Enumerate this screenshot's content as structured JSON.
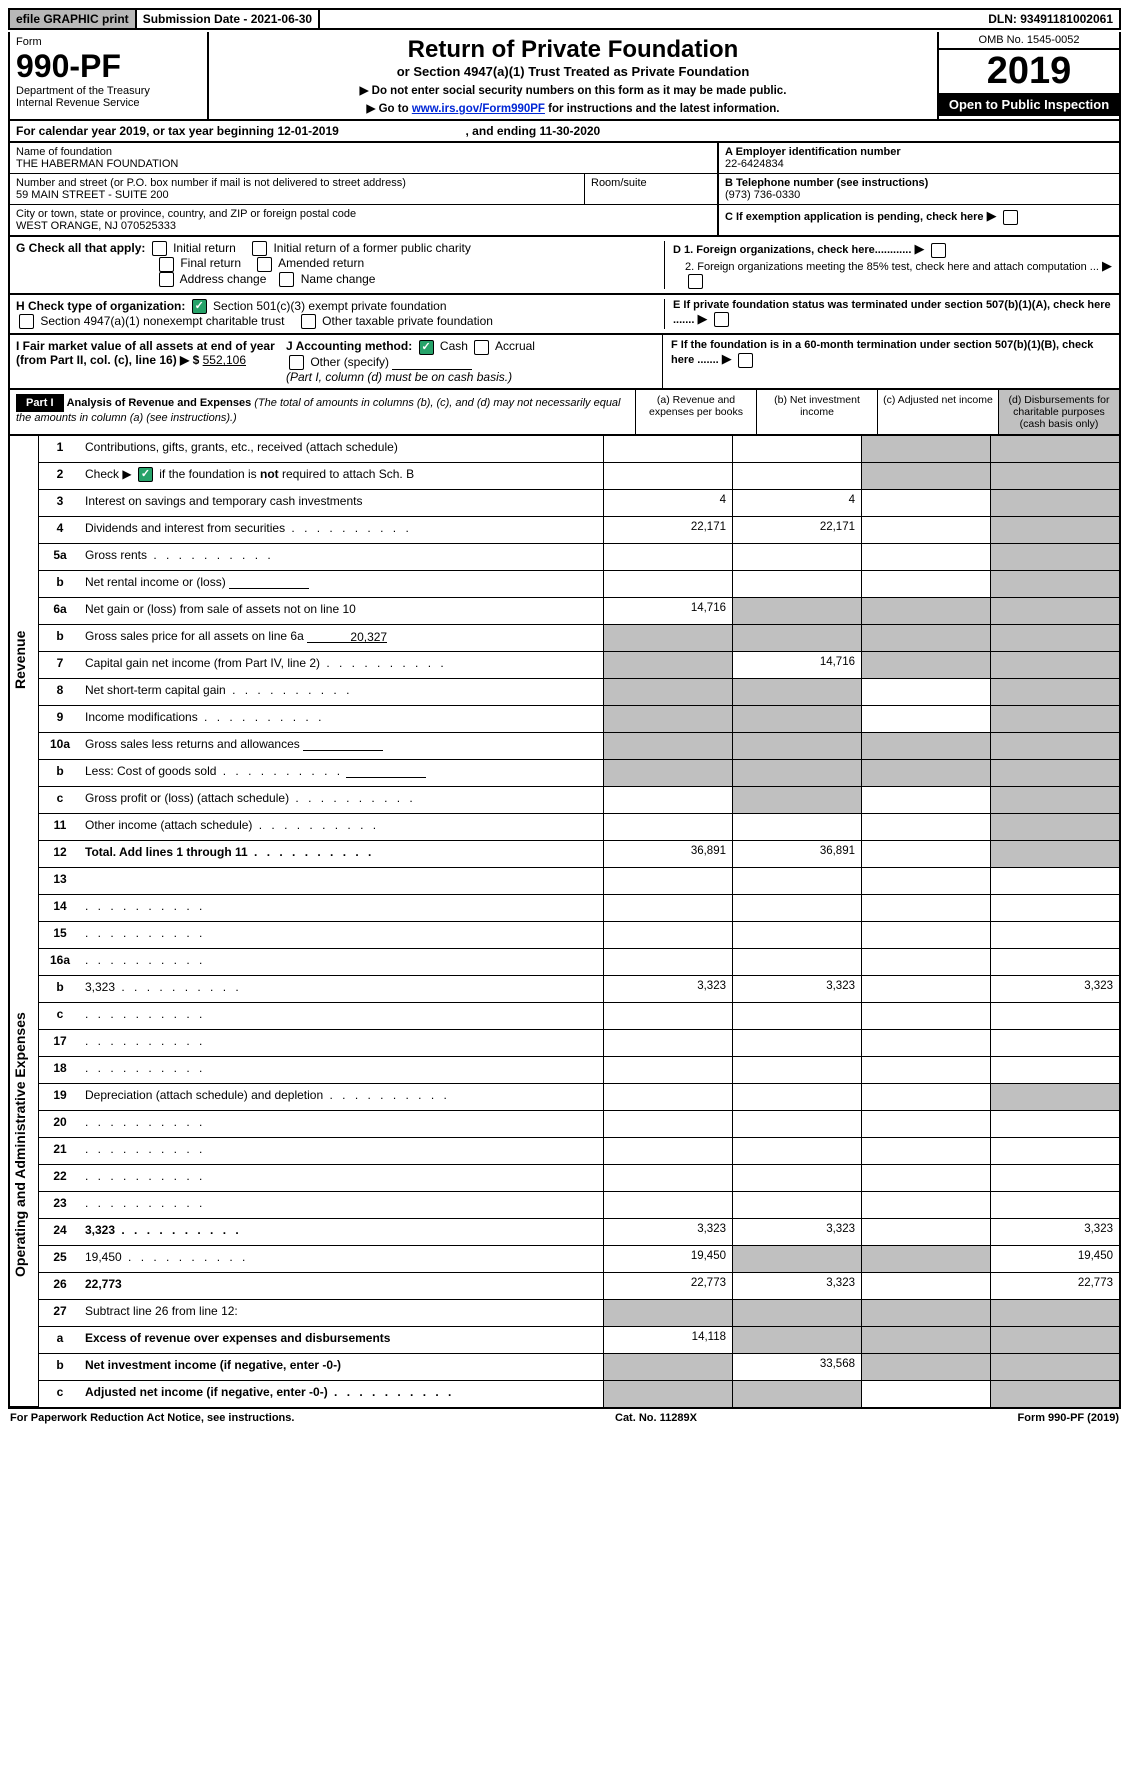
{
  "topbar": {
    "efile": "efile GRAPHIC print",
    "sub_label": "Submission Date - 2021-06-30",
    "dln": "DLN: 93491181002061"
  },
  "header": {
    "form_word": "Form",
    "form_num": "990-PF",
    "dept": "Department of the Treasury",
    "irs": "Internal Revenue Service",
    "title": "Return of Private Foundation",
    "sub": "or Section 4947(a)(1) Trust Treated as Private Foundation",
    "instr1": "▶ Do not enter social security numbers on this form as it may be made public.",
    "instr2_pre": "▶ Go to ",
    "instr2_link": "www.irs.gov/Form990PF",
    "instr2_post": " for instructions and the latest information.",
    "omb": "OMB No. 1545-0052",
    "year": "2019",
    "open": "Open to Public Inspection"
  },
  "cal_year": {
    "text_a": "For calendar year 2019, or tax year beginning 12-01-2019",
    "text_b": ", and ending 11-30-2020"
  },
  "info": {
    "name_label": "Name of foundation",
    "name": "THE HABERMAN FOUNDATION",
    "addr_label": "Number and street (or P.O. box number if mail is not delivered to street address)",
    "addr": "59 MAIN STREET - SUITE 200",
    "room_label": "Room/suite",
    "city_label": "City or town, state or province, country, and ZIP or foreign postal code",
    "city": "WEST ORANGE, NJ  070525333",
    "a_label": "A Employer identification number",
    "a_val": "22-6424834",
    "b_label": "B Telephone number (see instructions)",
    "b_val": "(973) 736-0330",
    "c_label": "C If exemption application is pending, check here"
  },
  "gsect": {
    "g": "G Check all that apply:",
    "initial": "Initial return",
    "initial_former": "Initial return of a former public charity",
    "final": "Final return",
    "amended": "Amended return",
    "addr_change": "Address change",
    "name_change": "Name change",
    "d1": "D 1. Foreign organizations, check here............",
    "d2": "2. Foreign organizations meeting the 85% test, check here and attach computation ...",
    "e": "E  If private foundation status was terminated under section 507(b)(1)(A), check here .......",
    "h": "H Check type of organization:",
    "h1": "Section 501(c)(3) exempt private foundation",
    "h2": "Section 4947(a)(1) nonexempt charitable trust",
    "h3": "Other taxable private foundation",
    "i": "I Fair market value of all assets at end of year (from Part II, col. (c), line 16) ▶ $",
    "i_val": "552,106",
    "j": "J Accounting method:",
    "j_cash": "Cash",
    "j_accr": "Accrual",
    "j_other": "Other (specify)",
    "j_note": "(Part I, column (d) must be on cash basis.)",
    "f": "F  If the foundation is in a 60-month termination under section 507(b)(1)(B), check here ......."
  },
  "part1": {
    "label": "Part I",
    "title": "Analysis of Revenue and Expenses",
    "title_note": " (The total of amounts in columns (b), (c), and (d) may not necessarily equal the amounts in column (a) (see instructions).)",
    "col_a": "(a)    Revenue and expenses per books",
    "col_b": "(b)   Net investment income",
    "col_c": "(c)   Adjusted net income",
    "col_d": "(d)   Disbursements for charitable purposes (cash basis only)"
  },
  "vtabs": {
    "rev": "Revenue",
    "exp": "Operating and Administrative Expenses"
  },
  "rows": [
    {
      "n": "1",
      "d": "Contributions, gifts, grants, etc., received (attach schedule)",
      "a": "",
      "b": "",
      "cSh": true,
      "dSh": true
    },
    {
      "n": "2",
      "d": "Check ▶ ☑ if the foundation is not required to attach Sch. B",
      "a": "",
      "b": "",
      "cSh": true,
      "dSh": true,
      "bold_word": "not"
    },
    {
      "n": "3",
      "d": "Interest on savings and temporary cash investments",
      "a": "4",
      "b": "4",
      "c": "",
      "dSh": true
    },
    {
      "n": "4",
      "d": "Dividends and interest from securities",
      "a": "22,171",
      "b": "22,171",
      "c": "",
      "dSh": true,
      "dots": true
    },
    {
      "n": "5a",
      "d": "Gross rents",
      "a": "",
      "b": "",
      "c": "",
      "dSh": true,
      "dots": true
    },
    {
      "n": "b",
      "d": "Net rental income or (loss)",
      "a": "",
      "b": "",
      "c": "",
      "dSh": true,
      "blank": true
    },
    {
      "n": "6a",
      "d": "Net gain or (loss) from sale of assets not on line 10",
      "a": "14,716",
      "bSh": true,
      "cSh": true,
      "dSh": true
    },
    {
      "n": "b",
      "d": "Gross sales price for all assets on line 6a",
      "aVal": "20,327",
      "aSh": true,
      "bSh": true,
      "cSh": true,
      "dSh": true,
      "inline_blank": true
    },
    {
      "n": "7",
      "d": "Capital gain net income (from Part IV, line 2)",
      "aSh": true,
      "b": "14,716",
      "cSh": true,
      "dSh": true,
      "dots": true
    },
    {
      "n": "8",
      "d": "Net short-term capital gain",
      "aSh": true,
      "bSh": true,
      "c": "",
      "dSh": true,
      "dots": true
    },
    {
      "n": "9",
      "d": "Income modifications",
      "aSh": true,
      "bSh": true,
      "c": "",
      "dSh": true,
      "dots": true
    },
    {
      "n": "10a",
      "d": "Gross sales less returns and allowances",
      "aSh": true,
      "bSh": true,
      "cSh": true,
      "dSh": true,
      "blank": true
    },
    {
      "n": "b",
      "d": "Less: Cost of goods sold",
      "aSh": true,
      "bSh": true,
      "cSh": true,
      "dSh": true,
      "blank": true,
      "dots": true
    },
    {
      "n": "c",
      "d": "Gross profit or (loss) (attach schedule)",
      "a": "",
      "bSh": true,
      "c": "",
      "dSh": true,
      "dots": true
    },
    {
      "n": "11",
      "d": "Other income (attach schedule)",
      "a": "",
      "b": "",
      "c": "",
      "dSh": true,
      "dots": true
    },
    {
      "n": "12",
      "d": "Total. Add lines 1 through 11",
      "a": "36,891",
      "b": "36,891",
      "c": "",
      "dSh": true,
      "bold": true,
      "dots": true
    },
    {
      "n": "13",
      "d": "",
      "a": "",
      "b": "",
      "c": ""
    },
    {
      "n": "14",
      "d": "",
      "a": "",
      "b": "",
      "c": "",
      "dots": true
    },
    {
      "n": "15",
      "d": "",
      "a": "",
      "b": "",
      "c": "",
      "dots": true
    },
    {
      "n": "16a",
      "d": "",
      "a": "",
      "b": "",
      "c": "",
      "dots": true
    },
    {
      "n": "b",
      "d": "3,323",
      "a": "3,323",
      "b": "3,323",
      "c": "",
      "dots": true
    },
    {
      "n": "c",
      "d": "",
      "a": "",
      "b": "",
      "c": "",
      "dots": true
    },
    {
      "n": "17",
      "d": "",
      "a": "",
      "b": "",
      "c": "",
      "dots": true
    },
    {
      "n": "18",
      "d": "",
      "a": "",
      "b": "",
      "c": "",
      "dots": true
    },
    {
      "n": "19",
      "d": "Depreciation (attach schedule) and depletion",
      "a": "",
      "b": "",
      "c": "",
      "dSh": true,
      "dots": true
    },
    {
      "n": "20",
      "d": "",
      "a": "",
      "b": "",
      "c": "",
      "dots": true
    },
    {
      "n": "21",
      "d": "",
      "a": "",
      "b": "",
      "c": "",
      "dots": true
    },
    {
      "n": "22",
      "d": "",
      "a": "",
      "b": "",
      "c": "",
      "dots": true
    },
    {
      "n": "23",
      "d": "",
      "a": "",
      "b": "",
      "c": "",
      "dots": true
    },
    {
      "n": "24",
      "d": "3,323",
      "a": "3,323",
      "b": "3,323",
      "c": "",
      "bold": true,
      "dots": true
    },
    {
      "n": "25",
      "d": "19,450",
      "a": "19,450",
      "bSh": true,
      "cSh": true,
      "dots": true
    },
    {
      "n": "26",
      "d": "22,773",
      "a": "22,773",
      "b": "3,323",
      "c": "",
      "bold": true
    },
    {
      "n": "27",
      "d": "Subtract line 26 from line 12:",
      "aSh": true,
      "bSh": true,
      "cSh": true,
      "dSh": true
    },
    {
      "n": "a",
      "d": "Excess of revenue over expenses and disbursements",
      "a": "14,118",
      "bSh": true,
      "cSh": true,
      "dSh": true,
      "bold": true
    },
    {
      "n": "b",
      "d": "Net investment income (if negative, enter -0-)",
      "aSh": true,
      "b": "33,568",
      "cSh": true,
      "dSh": true,
      "bold": true
    },
    {
      "n": "c",
      "d": "Adjusted net income (if negative, enter -0-)",
      "aSh": true,
      "bSh": true,
      "c": "",
      "dSh": true,
      "bold": true,
      "dots": true
    }
  ],
  "footer": {
    "left": "For Paperwork Reduction Act Notice, see instructions.",
    "mid": "Cat. No. 11289X",
    "right": "Form 990-PF (2019)"
  }
}
